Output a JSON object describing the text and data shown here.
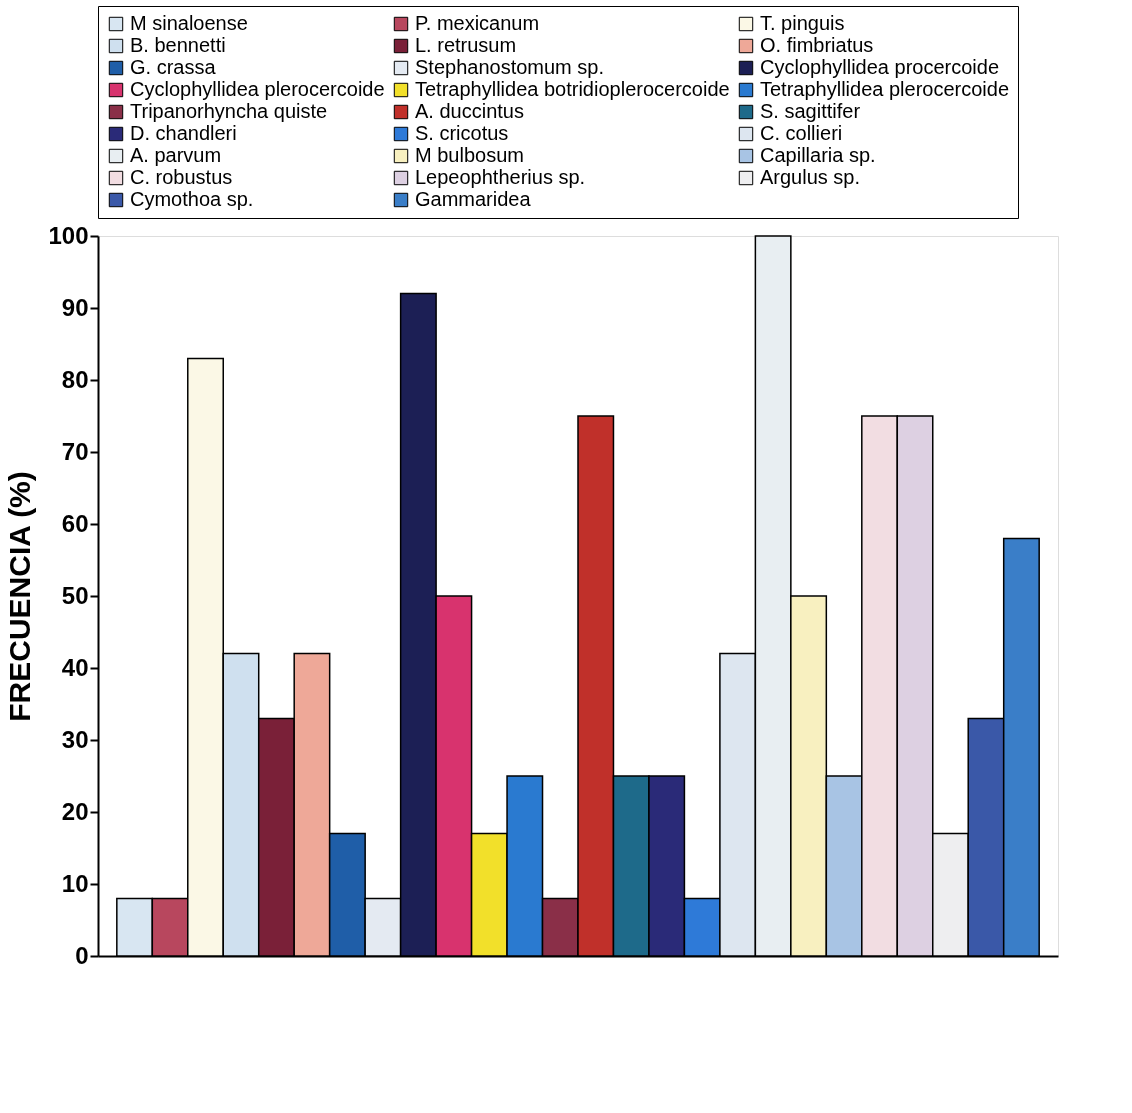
{
  "chart_data": {
    "type": "bar",
    "ylabel": "FRECUENCIA (%)",
    "categories": [
      null
    ],
    "ylim": [
      0,
      100
    ],
    "yticks": [
      0,
      10,
      20,
      30,
      40,
      50,
      60,
      70,
      80,
      90,
      100
    ],
    "grid": false,
    "legend": "top",
    "tick_labels": "y",
    "series": [
      {
        "name": "M sinaloense",
        "color": "#d8e6f2",
        "values": [
          8
        ]
      },
      {
        "name": "P. mexicanum",
        "color": "#b8475e",
        "values": [
          8
        ]
      },
      {
        "name": "T. pinguis",
        "color": "#fbf8e6",
        "values": [
          83
        ]
      },
      {
        "name": "B. bennetti",
        "color": "#cfe0ef",
        "values": [
          42
        ]
      },
      {
        "name": "L. retrusum",
        "color": "#7a2038",
        "values": [
          33
        ]
      },
      {
        "name": "O. fimbriatus",
        "color": "#eea898",
        "values": [
          42
        ]
      },
      {
        "name": "G. crassa",
        "color": "#1f5ea8",
        "values": [
          17
        ]
      },
      {
        "name": "Stephanostomum sp.",
        "color": "#e4eaf2",
        "values": [
          8
        ]
      },
      {
        "name": "Cyclophyllidea procercoide",
        "color": "#1c1f55",
        "values": [
          92
        ]
      },
      {
        "name": "Cyclophyllidea plerocercoide",
        "color": "#d8336e",
        "values": [
          50
        ]
      },
      {
        "name": "Tetraphyllidea botridioplerocercoide",
        "color": "#f2e02a",
        "values": [
          17
        ]
      },
      {
        "name": "Tetraphyllidea plerocercoide",
        "color": "#2a7ad0",
        "values": [
          25
        ]
      },
      {
        "name": "Tripanorhyncha quiste",
        "color": "#8a2f48",
        "values": [
          8
        ]
      },
      {
        "name": "A. duccintus",
        "color": "#c0302a",
        "values": [
          75
        ]
      },
      {
        "name": "S. sagittifer",
        "color": "#1e6a8a",
        "values": [
          25
        ]
      },
      {
        "name": "D. chandleri",
        "color": "#2a2a78",
        "values": [
          25
        ]
      },
      {
        "name": "S. cricotus",
        "color": "#2e7ad8",
        "values": [
          8
        ]
      },
      {
        "name": "C. collieri",
        "color": "#dde6f0",
        "values": [
          42
        ]
      },
      {
        "name": "A. parvum",
        "color": "#e8eef2",
        "values": [
          100
        ]
      },
      {
        "name": "M bulbosum",
        "color": "#f8f0c0",
        "values": [
          50
        ]
      },
      {
        "name": "Capillaria sp.",
        "color": "#a8c4e4",
        "values": [
          25
        ]
      },
      {
        "name": "C. robustus",
        "color": "#f2dde2",
        "values": [
          75
        ]
      },
      {
        "name": "Lepeophtherius sp.",
        "color": "#ddd0e2",
        "values": [
          75
        ]
      },
      {
        "name": "Argulus sp.",
        "color": "#eeeef0",
        "values": [
          17
        ]
      },
      {
        "name": "Cymothoa sp.",
        "color": "#3a58a8",
        "values": [
          33
        ]
      },
      {
        "name": "Gammaridea",
        "color": "#3a7ec8",
        "values": [
          58
        ]
      }
    ]
  }
}
